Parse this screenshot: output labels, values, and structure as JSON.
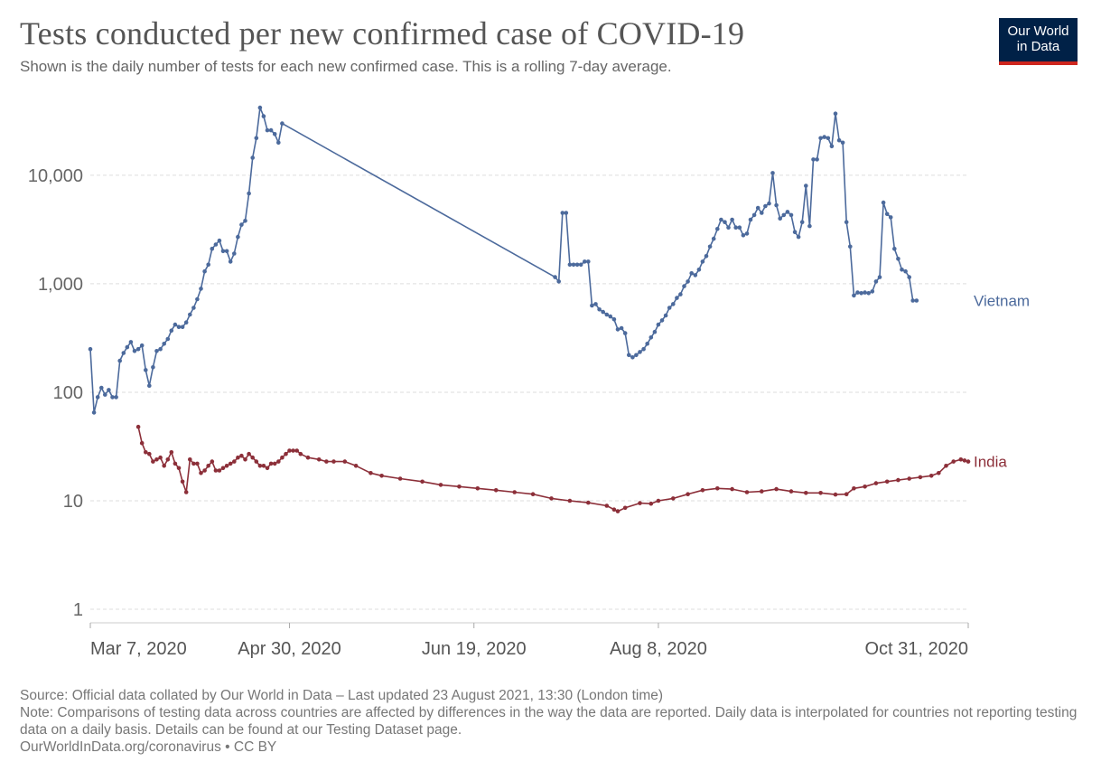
{
  "header": {
    "title": "Tests conducted per new confirmed case of COVID-19",
    "subtitle": "Shown is the daily number of tests for each new confirmed case. This is a rolling 7-day average."
  },
  "logo": {
    "line1": "Our World",
    "line2": "in Data",
    "colors": {
      "background": "#002147",
      "accent": "#ce261e"
    }
  },
  "chart_data": {
    "type": "line",
    "title": "Tests conducted per new confirmed case of COVID-19",
    "subtitle": "Shown is the daily number of tests for each new confirmed case. This is a rolling 7-day average.",
    "yscale": "log",
    "ylim": [
      1,
      50000
    ],
    "xlim": [
      "2020-03-07",
      "2020-10-31"
    ],
    "yticks": [
      1,
      10,
      100,
      1000,
      10000
    ],
    "ytick_labels": [
      "1",
      "10",
      "100",
      "1,000",
      "10,000"
    ],
    "xticks": [
      "2020-03-07",
      "2020-04-30",
      "2020-06-19",
      "2020-08-08",
      "2020-10-31"
    ],
    "xtick_labels": [
      "Mar 7, 2020",
      "Apr 30, 2020",
      "Jun 19, 2020",
      "Aug 8, 2020",
      "Oct 31, 2020"
    ],
    "grid": {
      "y": true,
      "x": false
    },
    "legend": "inline labels at line ends",
    "series": [
      {
        "name": "Vietnam",
        "color": "#4c6a9c",
        "points": [
          [
            "2020-03-07",
            250
          ],
          [
            "2020-03-08",
            65
          ],
          [
            "2020-03-09",
            90
          ],
          [
            "2020-03-10",
            110
          ],
          [
            "2020-03-11",
            95
          ],
          [
            "2020-03-12",
            105
          ],
          [
            "2020-03-13",
            90
          ],
          [
            "2020-03-14",
            90
          ],
          [
            "2020-03-15",
            195
          ],
          [
            "2020-03-16",
            230
          ],
          [
            "2020-03-17",
            260
          ],
          [
            "2020-03-18",
            290
          ],
          [
            "2020-03-19",
            240
          ],
          [
            "2020-03-20",
            250
          ],
          [
            "2020-03-21",
            270
          ],
          [
            "2020-03-22",
            160
          ],
          [
            "2020-03-23",
            115
          ],
          [
            "2020-03-24",
            170
          ],
          [
            "2020-03-25",
            240
          ],
          [
            "2020-03-26",
            250
          ],
          [
            "2020-03-27",
            280
          ],
          [
            "2020-03-28",
            310
          ],
          [
            "2020-03-29",
            370
          ],
          [
            "2020-03-30",
            420
          ],
          [
            "2020-03-31",
            400
          ],
          [
            "2020-04-01",
            400
          ],
          [
            "2020-04-02",
            440
          ],
          [
            "2020-04-03",
            520
          ],
          [
            "2020-04-04",
            600
          ],
          [
            "2020-04-05",
            720
          ],
          [
            "2020-04-06",
            900
          ],
          [
            "2020-04-07",
            1300
          ],
          [
            "2020-04-08",
            1500
          ],
          [
            "2020-04-09",
            2100
          ],
          [
            "2020-04-10",
            2300
          ],
          [
            "2020-04-11",
            2500
          ],
          [
            "2020-04-12",
            2000
          ],
          [
            "2020-04-13",
            2000
          ],
          [
            "2020-04-14",
            1600
          ],
          [
            "2020-04-15",
            1900
          ],
          [
            "2020-04-16",
            2700
          ],
          [
            "2020-04-17",
            3500
          ],
          [
            "2020-04-18",
            3800
          ],
          [
            "2020-04-19",
            6800
          ],
          [
            "2020-04-20",
            14500
          ],
          [
            "2020-04-21",
            22000
          ],
          [
            "2020-04-22",
            42000
          ],
          [
            "2020-04-23",
            35000
          ],
          [
            "2020-04-24",
            26000
          ],
          [
            "2020-04-25",
            26000
          ],
          [
            "2020-04-26",
            24000
          ],
          [
            "2020-04-27",
            20000
          ],
          [
            "2020-04-28",
            30000
          ],
          [
            "2020-07-11",
            1150
          ],
          [
            "2020-07-12",
            1050
          ],
          [
            "2020-07-13",
            4500
          ],
          [
            "2020-07-14",
            4500
          ],
          [
            "2020-07-15",
            1500
          ],
          [
            "2020-07-16",
            1500
          ],
          [
            "2020-07-17",
            1500
          ],
          [
            "2020-07-18",
            1500
          ],
          [
            "2020-07-19",
            1600
          ],
          [
            "2020-07-20",
            1600
          ],
          [
            "2020-07-21",
            630
          ],
          [
            "2020-07-22",
            650
          ],
          [
            "2020-07-23",
            580
          ],
          [
            "2020-07-24",
            550
          ],
          [
            "2020-07-25",
            520
          ],
          [
            "2020-07-26",
            500
          ],
          [
            "2020-07-27",
            470
          ],
          [
            "2020-07-28",
            380
          ],
          [
            "2020-07-29",
            390
          ],
          [
            "2020-07-30",
            350
          ],
          [
            "2020-07-31",
            220
          ],
          [
            "2020-08-01",
            210
          ],
          [
            "2020-08-02",
            220
          ],
          [
            "2020-08-03",
            235
          ],
          [
            "2020-08-04",
            250
          ],
          [
            "2020-08-05",
            280
          ],
          [
            "2020-08-06",
            320
          ],
          [
            "2020-08-07",
            360
          ],
          [
            "2020-08-08",
            420
          ],
          [
            "2020-08-09",
            460
          ],
          [
            "2020-08-10",
            510
          ],
          [
            "2020-08-11",
            600
          ],
          [
            "2020-08-12",
            650
          ],
          [
            "2020-08-13",
            740
          ],
          [
            "2020-08-14",
            800
          ],
          [
            "2020-08-15",
            950
          ],
          [
            "2020-08-16",
            1050
          ],
          [
            "2020-08-17",
            1250
          ],
          [
            "2020-08-18",
            1200
          ],
          [
            "2020-08-19",
            1350
          ],
          [
            "2020-08-20",
            1600
          ],
          [
            "2020-08-21",
            1800
          ],
          [
            "2020-08-22",
            2200
          ],
          [
            "2020-08-23",
            2600
          ],
          [
            "2020-08-24",
            3200
          ],
          [
            "2020-08-25",
            3900
          ],
          [
            "2020-08-26",
            3700
          ],
          [
            "2020-08-27",
            3300
          ],
          [
            "2020-08-28",
            3900
          ],
          [
            "2020-08-29",
            3300
          ],
          [
            "2020-08-30",
            3300
          ],
          [
            "2020-08-31",
            2800
          ],
          [
            "2020-09-01",
            2900
          ],
          [
            "2020-09-02",
            3900
          ],
          [
            "2020-09-03",
            4300
          ],
          [
            "2020-09-04",
            5000
          ],
          [
            "2020-09-05",
            4500
          ],
          [
            "2020-09-06",
            5200
          ],
          [
            "2020-09-07",
            5500
          ],
          [
            "2020-09-08",
            10500
          ],
          [
            "2020-09-09",
            5300
          ],
          [
            "2020-09-10",
            4000
          ],
          [
            "2020-09-11",
            4300
          ],
          [
            "2020-09-12",
            4600
          ],
          [
            "2020-09-13",
            4300
          ],
          [
            "2020-09-14",
            3000
          ],
          [
            "2020-09-15",
            2700
          ],
          [
            "2020-09-16",
            3700
          ],
          [
            "2020-09-17",
            8000
          ],
          [
            "2020-09-18",
            3400
          ],
          [
            "2020-09-19",
            14000
          ],
          [
            "2020-09-20",
            14000
          ],
          [
            "2020-09-21",
            22000
          ],
          [
            "2020-09-22",
            22500
          ],
          [
            "2020-09-23",
            22000
          ],
          [
            "2020-09-24",
            18500
          ],
          [
            "2020-09-25",
            37000
          ],
          [
            "2020-09-26",
            21000
          ],
          [
            "2020-09-27",
            20000
          ],
          [
            "2020-09-28",
            3700
          ],
          [
            "2020-09-29",
            2200
          ],
          [
            "2020-09-30",
            780
          ],
          [
            "2020-10-01",
            830
          ],
          [
            "2020-10-02",
            820
          ],
          [
            "2020-10-03",
            830
          ],
          [
            "2020-10-04",
            820
          ],
          [
            "2020-10-05",
            850
          ],
          [
            "2020-10-06",
            1050
          ],
          [
            "2020-10-07",
            1150
          ],
          [
            "2020-10-08",
            5600
          ],
          [
            "2020-10-09",
            4400
          ],
          [
            "2020-10-10",
            4100
          ],
          [
            "2020-10-11",
            2100
          ],
          [
            "2020-10-12",
            1700
          ],
          [
            "2020-10-13",
            1350
          ],
          [
            "2020-10-14",
            1300
          ],
          [
            "2020-10-15",
            1150
          ],
          [
            "2020-10-16",
            700
          ],
          [
            "2020-10-17",
            700
          ]
        ]
      },
      {
        "name": "India",
        "color": "#8c2f39",
        "points": [
          [
            "2020-03-20",
            48
          ],
          [
            "2020-03-21",
            34
          ],
          [
            "2020-03-22",
            28
          ],
          [
            "2020-03-23",
            27
          ],
          [
            "2020-03-24",
            23
          ],
          [
            "2020-03-25",
            24
          ],
          [
            "2020-03-26",
            25
          ],
          [
            "2020-03-27",
            21
          ],
          [
            "2020-03-28",
            24
          ],
          [
            "2020-03-29",
            28
          ],
          [
            "2020-03-30",
            22
          ],
          [
            "2020-03-31",
            20
          ],
          [
            "2020-04-01",
            15
          ],
          [
            "2020-04-02",
            12
          ],
          [
            "2020-04-03",
            24
          ],
          [
            "2020-04-04",
            22
          ],
          [
            "2020-04-05",
            22
          ],
          [
            "2020-04-06",
            18
          ],
          [
            "2020-04-07",
            19
          ],
          [
            "2020-04-08",
            21
          ],
          [
            "2020-04-09",
            23
          ],
          [
            "2020-04-10",
            19
          ],
          [
            "2020-04-11",
            19
          ],
          [
            "2020-04-12",
            20
          ],
          [
            "2020-04-13",
            21
          ],
          [
            "2020-04-14",
            22
          ],
          [
            "2020-04-15",
            23
          ],
          [
            "2020-04-16",
            25
          ],
          [
            "2020-04-17",
            26
          ],
          [
            "2020-04-18",
            24
          ],
          [
            "2020-04-19",
            27
          ],
          [
            "2020-04-20",
            25
          ],
          [
            "2020-04-21",
            23
          ],
          [
            "2020-04-22",
            21
          ],
          [
            "2020-04-23",
            21
          ],
          [
            "2020-04-24",
            20
          ],
          [
            "2020-04-25",
            22
          ],
          [
            "2020-04-26",
            22
          ],
          [
            "2020-04-27",
            23
          ],
          [
            "2020-04-28",
            25
          ],
          [
            "2020-04-29",
            27
          ],
          [
            "2020-04-30",
            29
          ],
          [
            "2020-05-01",
            29
          ],
          [
            "2020-05-02",
            29
          ],
          [
            "2020-05-03",
            27
          ],
          [
            "2020-05-05",
            25
          ],
          [
            "2020-05-08",
            24
          ],
          [
            "2020-05-10",
            23
          ],
          [
            "2020-05-12",
            23
          ],
          [
            "2020-05-15",
            23
          ],
          [
            "2020-05-18",
            21
          ],
          [
            "2020-05-22",
            18
          ],
          [
            "2020-05-25",
            17
          ],
          [
            "2020-05-30",
            16
          ],
          [
            "2020-06-05",
            15
          ],
          [
            "2020-06-10",
            14
          ],
          [
            "2020-06-15",
            13.5
          ],
          [
            "2020-06-20",
            13
          ],
          [
            "2020-06-25",
            12.5
          ],
          [
            "2020-06-30",
            12
          ],
          [
            "2020-07-05",
            11.5
          ],
          [
            "2020-07-10",
            10.5
          ],
          [
            "2020-07-15",
            10
          ],
          [
            "2020-07-20",
            9.6
          ],
          [
            "2020-07-25",
            9
          ],
          [
            "2020-07-27",
            8.3
          ],
          [
            "2020-07-28",
            8
          ],
          [
            "2020-07-30",
            8.6
          ],
          [
            "2020-08-03",
            9.5
          ],
          [
            "2020-08-06",
            9.4
          ],
          [
            "2020-08-08",
            10
          ],
          [
            "2020-08-12",
            10.5
          ],
          [
            "2020-08-16",
            11.5
          ],
          [
            "2020-08-20",
            12.5
          ],
          [
            "2020-08-24",
            13
          ],
          [
            "2020-08-28",
            12.8
          ],
          [
            "2020-09-01",
            12
          ],
          [
            "2020-09-05",
            12.2
          ],
          [
            "2020-09-09",
            12.8
          ],
          [
            "2020-09-13",
            12.2
          ],
          [
            "2020-09-17",
            11.8
          ],
          [
            "2020-09-21",
            11.8
          ],
          [
            "2020-09-25",
            11.4
          ],
          [
            "2020-09-28",
            11.5
          ],
          [
            "2020-09-30",
            13
          ],
          [
            "2020-10-03",
            13.5
          ],
          [
            "2020-10-06",
            14.5
          ],
          [
            "2020-10-09",
            15
          ],
          [
            "2020-10-12",
            15.5
          ],
          [
            "2020-10-15",
            16
          ],
          [
            "2020-10-18",
            16.5
          ],
          [
            "2020-10-21",
            17
          ],
          [
            "2020-10-23",
            18
          ],
          [
            "2020-10-25",
            21
          ],
          [
            "2020-10-27",
            23
          ],
          [
            "2020-10-29",
            24
          ],
          [
            "2020-10-30",
            23.5
          ],
          [
            "2020-10-31",
            23
          ]
        ]
      }
    ]
  },
  "footer": {
    "source": "Source: Official data collated by Our World in Data – Last updated 23 August 2021, 13:30 (London time)",
    "note": "Note: Comparisons of testing data across countries are affected by differences in the way the data are reported. Daily data is interpolated for countries not reporting testing data on a daily basis. Details can be found at our Testing Dataset page.",
    "credit": "OurWorldInData.org/coronavirus • CC BY"
  }
}
